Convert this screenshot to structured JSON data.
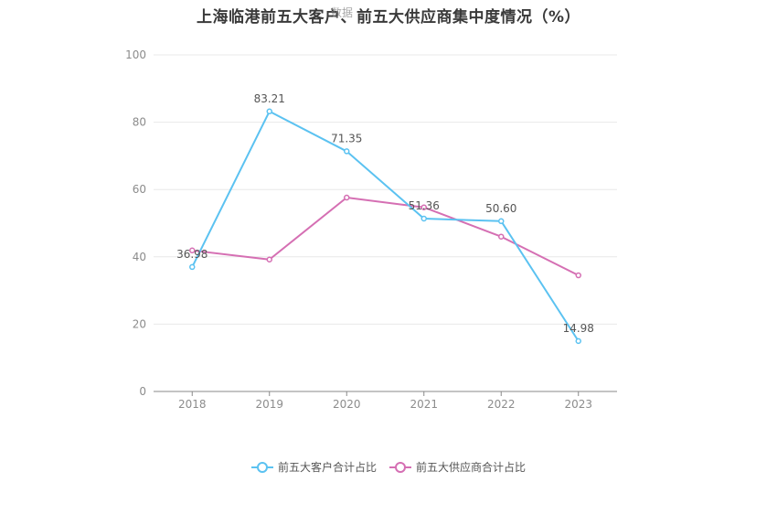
{
  "chart_data": {
    "type": "line",
    "title": "上海临港前五大客户、前五大供应商集中度情况（%）",
    "watermark": "数据",
    "categories": [
      "2018",
      "2019",
      "2020",
      "2021",
      "2022",
      "2023"
    ],
    "ylim": [
      0,
      100
    ],
    "yticks": [
      0,
      20,
      40,
      60,
      80,
      100
    ],
    "grid": true,
    "legend_position": "bottom",
    "series": [
      {
        "name": "前五大客户合计占比",
        "color": "#5bc2f1",
        "values": [
          36.98,
          83.21,
          71.35,
          51.36,
          50.6,
          14.98
        ],
        "labels": [
          "36.98",
          "83.21",
          "71.35",
          "51.36",
          "50.60",
          "14.98"
        ]
      },
      {
        "name": "前五大供应商合计占比",
        "color": "#d56fb3",
        "values": [
          41.9,
          39.2,
          57.6,
          54.7,
          46.0,
          34.5
        ]
      }
    ]
  }
}
